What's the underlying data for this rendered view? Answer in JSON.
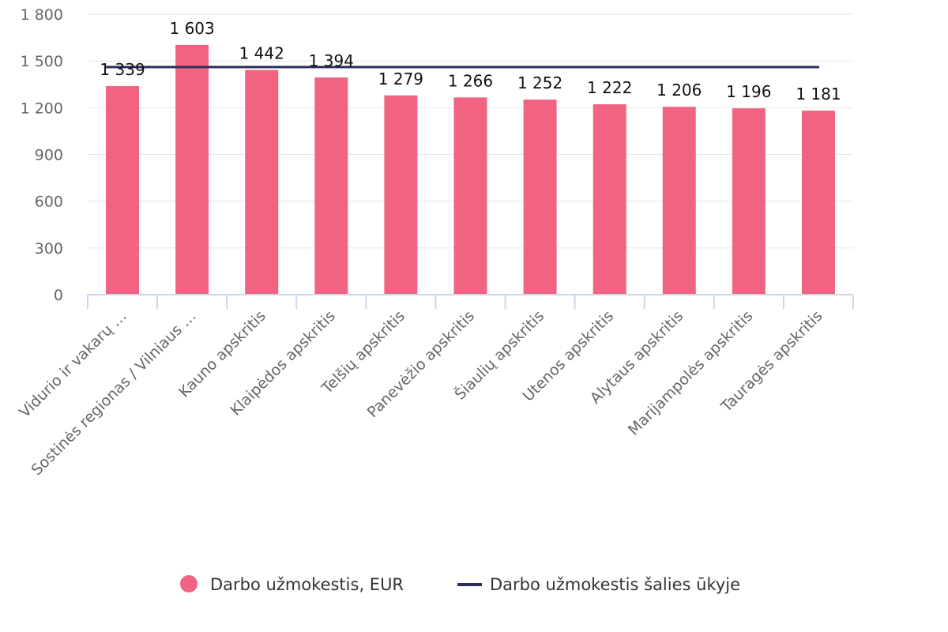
{
  "chart_data": {
    "type": "bar",
    "categories": [
      "Vidurio ir vakarų …",
      "Sostinės regionas / Vilniaus …",
      "Kauno apskritis",
      "Klaipėdos apskritis",
      "Telšių apskritis",
      "Panevėžio apskritis",
      "Šiaulių apskritis",
      "Utenos apskritis",
      "Alytaus apskritis",
      "Marijampolės apskritis",
      "Tauragės apskritis"
    ],
    "series": [
      {
        "name": "Darbo užmokestis, EUR",
        "type": "bar",
        "color": "#f06481",
        "values": [
          1339,
          1603,
          1442,
          1394,
          1279,
          1266,
          1252,
          1222,
          1206,
          1196,
          1181
        ]
      },
      {
        "name": "Darbo užmokestis šalies ūkyje",
        "type": "line",
        "color": "#2b2d5c",
        "values": [
          1461,
          1461,
          1461,
          1461,
          1461,
          1461,
          1461,
          1461,
          1461,
          1461,
          1461
        ]
      }
    ],
    "data_labels": [
      "1 339",
      "1 603",
      "1 442",
      "1 394",
      "1 279",
      "1 266",
      "1 252",
      "1 222",
      "1 206",
      "1 196",
      "1 181"
    ],
    "y_ticks": [
      0,
      300,
      600,
      900,
      1200,
      1500,
      1800
    ],
    "y_tick_labels": [
      "0",
      "300",
      "600",
      "900",
      "1 200",
      "1 500",
      "1 800"
    ],
    "ylim": [
      0,
      1800
    ],
    "grid": true,
    "legend_position": "bottom-center"
  }
}
